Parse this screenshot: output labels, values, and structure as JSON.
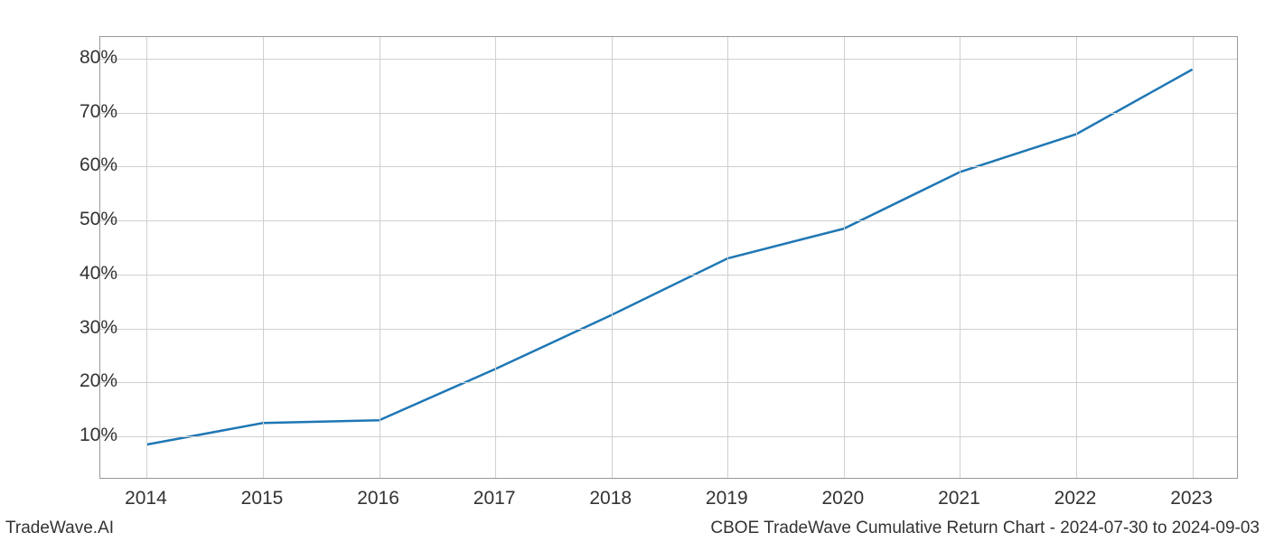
{
  "chart": {
    "type": "line",
    "x_labels": [
      "2014",
      "2015",
      "2016",
      "2017",
      "2018",
      "2019",
      "2020",
      "2021",
      "2022",
      "2023"
    ],
    "y_values": [
      8.5,
      12.5,
      13.0,
      22.5,
      32.5,
      43.0,
      48.5,
      59.0,
      66.0,
      78.0
    ],
    "y_ticks": [
      10,
      20,
      30,
      40,
      50,
      60,
      70,
      80
    ],
    "y_tick_labels": [
      "10%",
      "20%",
      "30%",
      "40%",
      "50%",
      "60%",
      "70%",
      "80%"
    ],
    "y_min": 2,
    "y_max": 84,
    "x_min": -0.4,
    "x_max": 9.4,
    "line_color": "#1f77b4",
    "line_width": 2.5,
    "grid_color": "#d0d0d0",
    "border_color": "#999999",
    "background_color": "#ffffff",
    "tick_fontsize": 21,
    "footer_fontsize": 19
  },
  "footer": {
    "left": "TradeWave.AI",
    "right": "CBOE TradeWave Cumulative Return Chart - 2024-07-30 to 2024-09-03"
  }
}
